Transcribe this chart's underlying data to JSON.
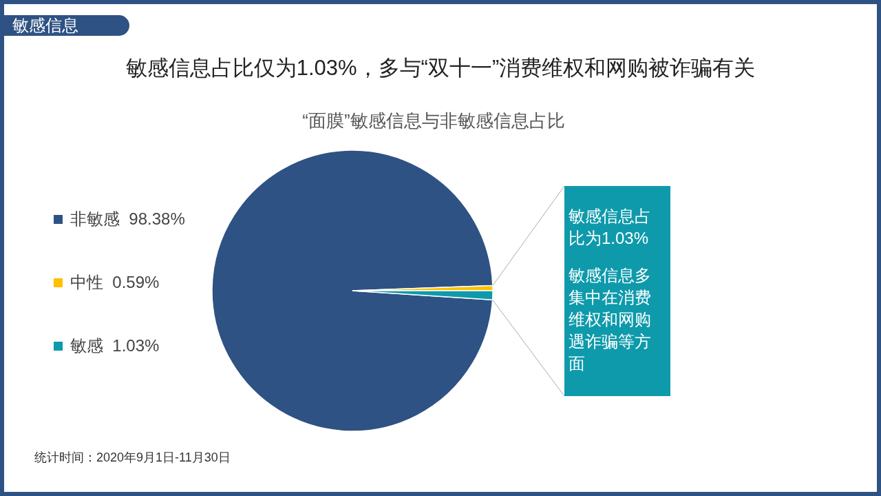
{
  "chart_data": {
    "type": "pie",
    "title": "敏感信息占比仅为1.03%，多与“双十一”消费维权和网购被诈骗有关",
    "subtitle": "“面膜”敏感信息与非敏感信息占比",
    "categories": [
      "非敏感",
      "中性",
      "敏感"
    ],
    "values": [
      98.38,
      0.59,
      1.03
    ],
    "colors": [
      "#2e5283",
      "#ffc000",
      "#0e9aab"
    ],
    "value_labels": [
      "98.38%",
      "0.59%",
      "1.03%"
    ],
    "legend": "left",
    "annotations": [
      "敏感信息",
      "敏感信息占比为1.03%",
      "敏感信息多集中在消费维权和网购遇诈骗等方面",
      "统计时间：2020年9月1日-11月30日"
    ]
  }
}
